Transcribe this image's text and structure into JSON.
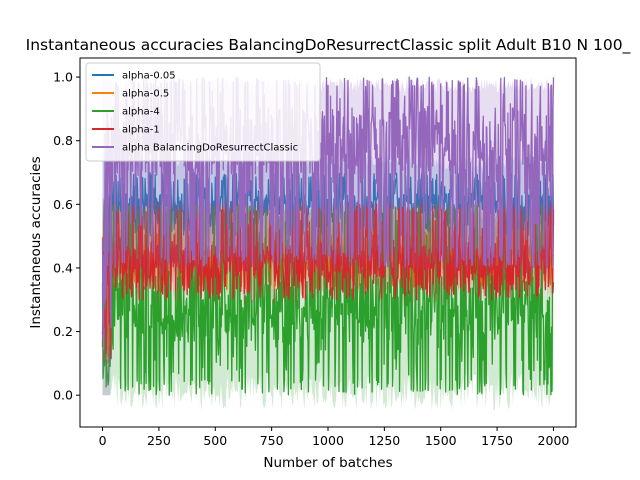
{
  "chart_data": {
    "type": "line",
    "title": "Instantaneous accuracies BalancingDoResurrectClassic split Adult B10 N 100_",
    "xlabel": "Number of batches",
    "ylabel": "Instantaneous accuracies",
    "xlim": [
      -100,
      2100
    ],
    "ylim": [
      -0.1,
      1.06
    ],
    "xticks": [
      0,
      250,
      500,
      750,
      1000,
      1250,
      1500,
      1750,
      2000
    ],
    "yticks": [
      0.0,
      0.2,
      0.4,
      0.6,
      0.8,
      1.0
    ],
    "grid": false,
    "legend_position": "top-left",
    "series": [
      {
        "name": "alpha-0.05",
        "color": "#1f77b4",
        "x_range": [
          0,
          2000
        ],
        "mean": 0.6,
        "spread_min": 0.5,
        "spread_max": 0.7,
        "band_min": 0.44,
        "band_max": 0.76,
        "warmup_end": 40,
        "warmup_min": 0.1
      },
      {
        "name": "alpha-0.5",
        "color": "#ff7f0e",
        "x_range": [
          0,
          2000
        ],
        "mean": 0.44,
        "spread_min": 0.33,
        "spread_max": 0.52,
        "band_min": 0.3,
        "band_max": 0.55,
        "warmup_end": 40,
        "warmup_min": 0.1
      },
      {
        "name": "alpha-4",
        "color": "#2ca02c",
        "x_range": [
          0,
          2000
        ],
        "mean": 0.27,
        "spread_min": 0.0,
        "spread_max": 0.6,
        "band_min": -0.05,
        "band_max": 0.6,
        "warmup_end": 40,
        "warmup_min": 0.0
      },
      {
        "name": "alpha-1",
        "color": "#d62728",
        "x_range": [
          0,
          2000
        ],
        "mean": 0.42,
        "spread_min": 0.3,
        "spread_max": 0.6,
        "band_min": 0.28,
        "band_max": 0.62,
        "warmup_end": 40,
        "warmup_min": 0.1
      },
      {
        "name": "alpha BalancingDoResurrectClassic",
        "color": "#9467bd",
        "x_range": [
          0,
          2000
        ],
        "mean": 0.8,
        "spread_min": 0.4,
        "spread_max": 1.0,
        "band_min": 0.36,
        "band_max": 1.0,
        "warmup_end": 40,
        "warmup_min": 0.0
      }
    ]
  }
}
